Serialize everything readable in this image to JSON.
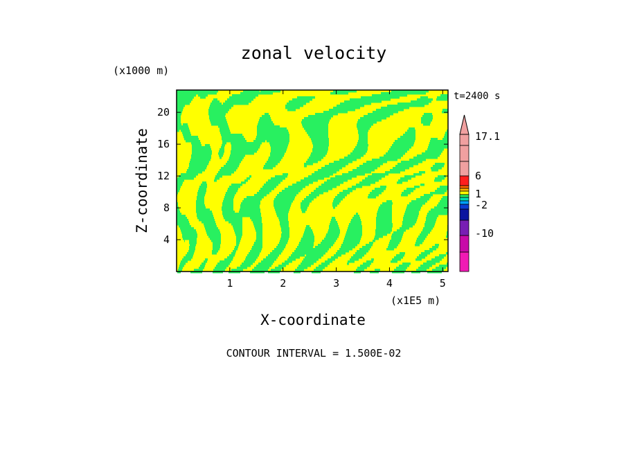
{
  "chart_data": {
    "type": "heatmap",
    "title": "zonal velocity",
    "xlabel": "X-coordinate",
    "ylabel": "Z-coordinate",
    "x_unit": "(x1E5 m)",
    "y_unit": "(x1000 m)",
    "time_label": "t=2400 s",
    "footer": "CONTOUR INTERVAL = 1.500E-02",
    "xlim": [
      0,
      5.1
    ],
    "ylim": [
      0,
      22.8
    ],
    "x_ticks": [
      "1",
      "2",
      "3",
      "4",
      "5"
    ],
    "x_tick_values": [
      1,
      2,
      3,
      4,
      5
    ],
    "y_ticks": [
      "4",
      "8",
      "12",
      "16",
      "20"
    ],
    "y_tick_values": [
      4,
      8,
      12,
      16,
      20
    ],
    "field_colors": [
      "#ffff00",
      "#28f060"
    ],
    "field_description_values": [
      0.0,
      0.015
    ],
    "colorbar": {
      "colors": [
        "#f01ab4",
        "#c80aa8",
        "#781eb4",
        "#0a14a0",
        "#0a3cd2",
        "#00a0ff",
        "#00dcb4",
        "#28f060",
        "#ffff00",
        "#ffb400",
        "#ff6400",
        "#ff1e1e",
        "#f0a0a0",
        "#f0a0a0",
        "#f0a0a0"
      ],
      "labels": [
        "17.1",
        "6",
        "1",
        "-2",
        "-10"
      ],
      "label_values": [
        17.1,
        6,
        1,
        -2,
        -10
      ]
    }
  }
}
